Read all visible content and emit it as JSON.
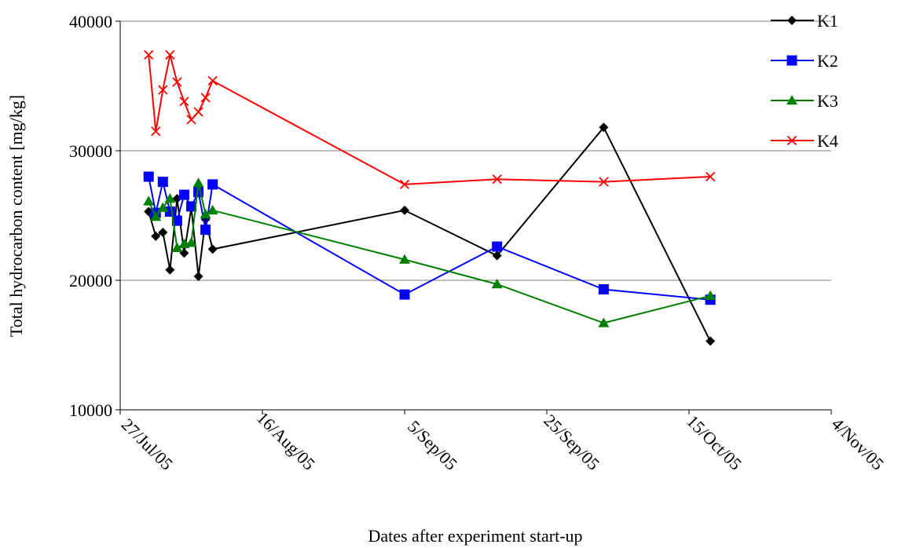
{
  "chart_data": {
    "type": "line",
    "xlabel": "Dates after experiment start-up",
    "ylabel": "Total hydrocarbon content [mg/kg]",
    "ylim": [
      10000,
      40000
    ],
    "yticks": [
      10000,
      20000,
      30000,
      40000
    ],
    "ytick_labels": [
      "10000",
      "20000",
      "30000",
      "40000"
    ],
    "grid": "horizontal",
    "x_axis_type": "date",
    "xlim": [
      "2005-07-27",
      "2005-11-04"
    ],
    "xticks": [
      "2005-07-27",
      "2005-08-16",
      "2005-09-05",
      "2005-09-25",
      "2005-10-15",
      "2005-11-04"
    ],
    "xtick_labels": [
      "27/Jul/05",
      "16/Aug/05",
      "5/Sep/05",
      "25/Sep/05",
      "15/Oct/05",
      "4/Nov/05"
    ],
    "legend_position": "right",
    "series": [
      {
        "name": "K1",
        "color": "#000000",
        "marker": "diamond",
        "x": [
          "2005-07-31",
          "2005-08-01",
          "2005-08-02",
          "2005-08-03",
          "2005-08-04",
          "2005-08-05",
          "2005-08-06",
          "2005-08-07",
          "2005-08-08",
          "2005-08-09",
          "2005-09-05",
          "2005-09-18",
          "2005-10-03",
          "2005-10-18"
        ],
        "y": [
          25300,
          23400,
          23700,
          20800,
          26300,
          22100,
          25600,
          20300,
          24700,
          22400,
          25400,
          21900,
          31800,
          15300
        ]
      },
      {
        "name": "K2",
        "color": "#0000FF",
        "marker": "square",
        "x": [
          "2005-07-31",
          "2005-08-01",
          "2005-08-02",
          "2005-08-03",
          "2005-08-04",
          "2005-08-05",
          "2005-08-06",
          "2005-08-07",
          "2005-08-08",
          "2005-08-09",
          "2005-09-05",
          "2005-09-18",
          "2005-10-03",
          "2005-10-18"
        ],
        "y": [
          28000,
          25200,
          27600,
          25300,
          24600,
          26600,
          25700,
          26800,
          23900,
          27400,
          18900,
          22600,
          19300,
          18500
        ]
      },
      {
        "name": "K3",
        "color": "#008000",
        "marker": "triangle",
        "x": [
          "2005-07-31",
          "2005-08-01",
          "2005-08-02",
          "2005-08-03",
          "2005-08-04",
          "2005-08-05",
          "2005-08-06",
          "2005-08-07",
          "2005-08-08",
          "2005-08-09",
          "2005-09-05",
          "2005-09-18",
          "2005-10-03",
          "2005-10-18"
        ],
        "y": [
          26100,
          24900,
          25600,
          26300,
          22500,
          22800,
          22900,
          27500,
          25100,
          25400,
          21600,
          19700,
          16700,
          18800
        ]
      },
      {
        "name": "K4",
        "color": "#FF0000",
        "marker": "x",
        "x": [
          "2005-07-31",
          "2005-08-01",
          "2005-08-02",
          "2005-08-03",
          "2005-08-04",
          "2005-08-05",
          "2005-08-06",
          "2005-08-07",
          "2005-08-08",
          "2005-08-09",
          "2005-09-05",
          "2005-09-18",
          "2005-10-03",
          "2005-10-18"
        ],
        "y": [
          37400,
          31500,
          34700,
          37400,
          35300,
          33800,
          32400,
          33000,
          34100,
          35400,
          27400,
          27800,
          27600,
          28000
        ]
      }
    ]
  }
}
